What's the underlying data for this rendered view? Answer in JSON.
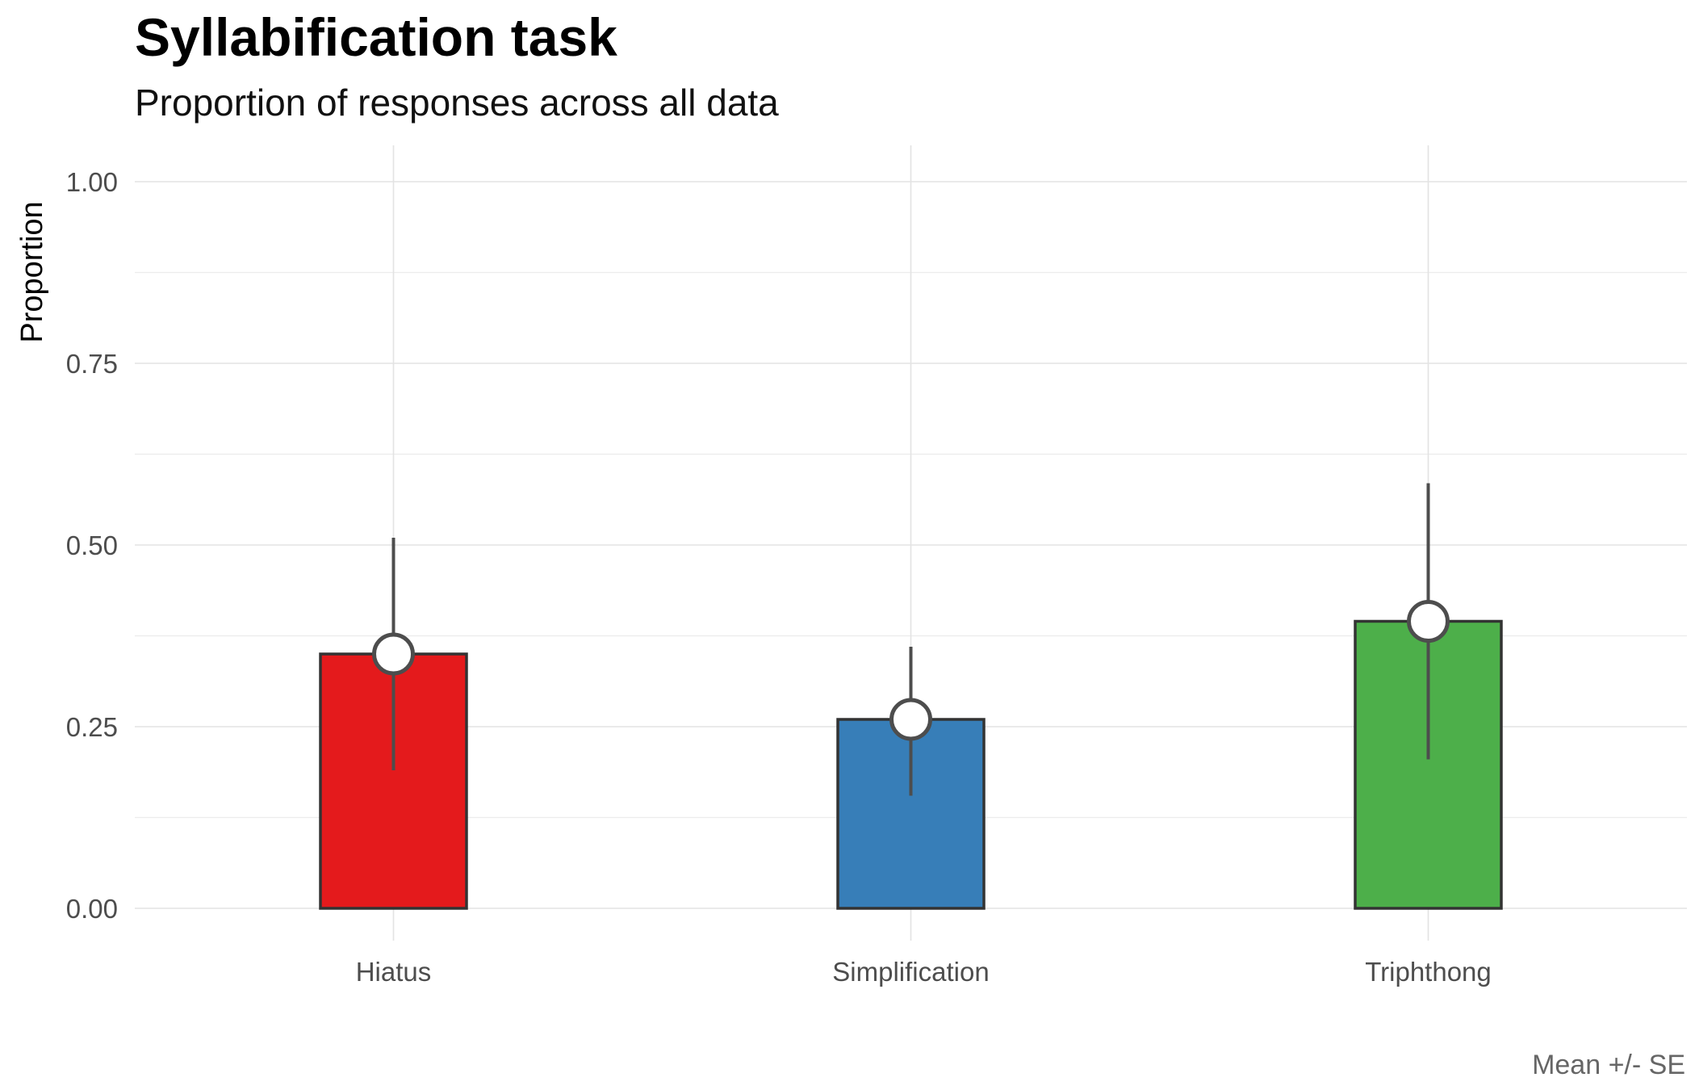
{
  "chart_data": {
    "type": "bar",
    "title": "Syllabification task",
    "subtitle": "Proportion of responses across all data",
    "xlabel": "",
    "ylabel": "Proportion",
    "caption": "Mean +/- SE",
    "categories": [
      "Hiatus",
      "Simplification",
      "Triphthong"
    ],
    "values": [
      0.35,
      0.26,
      0.395
    ],
    "error_low": [
      0.19,
      0.155,
      0.205
    ],
    "error_high": [
      0.51,
      0.36,
      0.585
    ],
    "colors": [
      "#E41A1C",
      "#377EB8",
      "#4DAF4A"
    ],
    "ylim": [
      0,
      1.0
    ],
    "yticks": [
      0,
      0.25,
      0.5,
      0.75,
      1.0
    ],
    "ytick_labels": [
      "0.00",
      "0.25",
      "0.50",
      "0.75",
      "1.00"
    ],
    "grid": true,
    "legend": "none"
  }
}
